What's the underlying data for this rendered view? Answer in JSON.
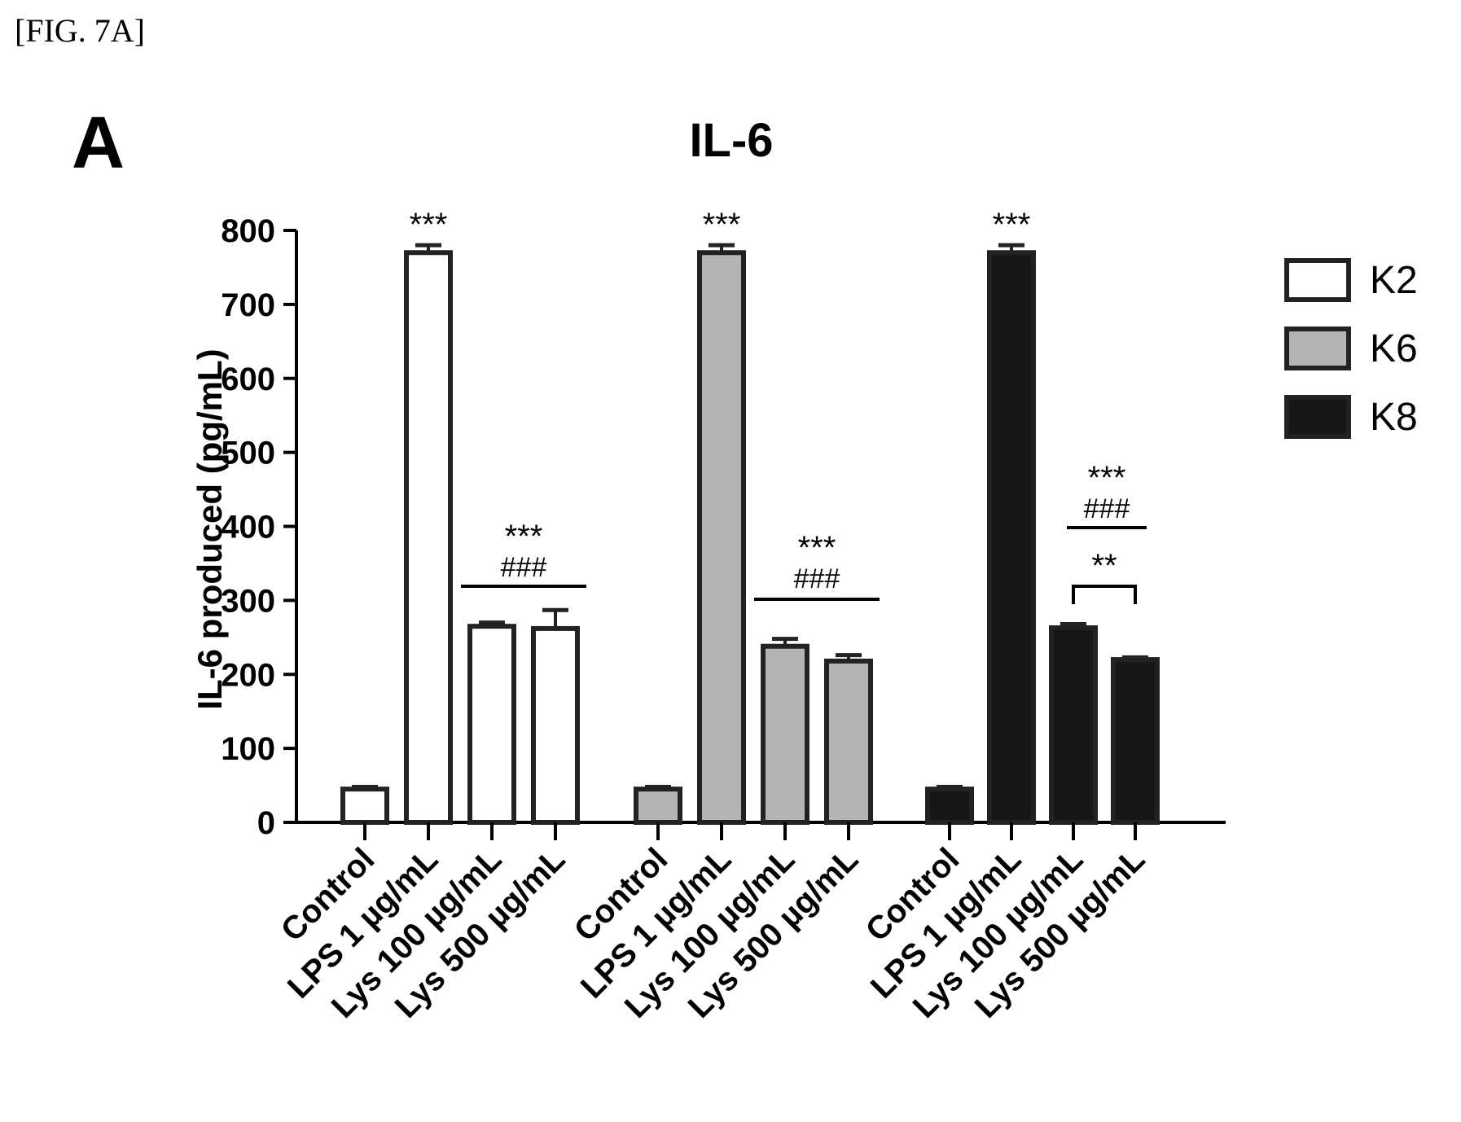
{
  "figure_label": "[FIG. 7A]",
  "panel_letter": "A",
  "chart_data": {
    "type": "bar",
    "title": "IL-6",
    "ylabel": "IL-6 produced (pg/mL)",
    "xlabel": "",
    "ylim": [
      0,
      800
    ],
    "yticks": [
      "0",
      "100",
      "200",
      "300",
      "400",
      "500",
      "600",
      "700",
      "800"
    ],
    "categories": [
      "Control",
      "LPS 1 µg/mL",
      "Lys 100 µg/mL",
      "Lys 500 µg/mL"
    ],
    "legend_position": "right",
    "colors": {
      "K2": "#ffffff",
      "K6": "#b4b4b4",
      "K8": "#161616"
    },
    "series": [
      {
        "name": "K2",
        "values": [
          45,
          770,
          265,
          262
        ],
        "errors": [
          3,
          10,
          5,
          25
        ]
      },
      {
        "name": "K6",
        "values": [
          45,
          770,
          238,
          218
        ],
        "errors": [
          3,
          10,
          10,
          8
        ]
      },
      {
        "name": "K8",
        "values": [
          45,
          770,
          263,
          220
        ],
        "errors": [
          3,
          10,
          5,
          3
        ]
      }
    ],
    "annotations": {
      "lps_star": "***",
      "groups": [
        {
          "lines": [
            "***",
            "###"
          ]
        },
        {
          "lines": [
            "***",
            "###"
          ]
        },
        {
          "lines": [
            "***",
            "###"
          ],
          "bracket": "**"
        }
      ]
    }
  }
}
